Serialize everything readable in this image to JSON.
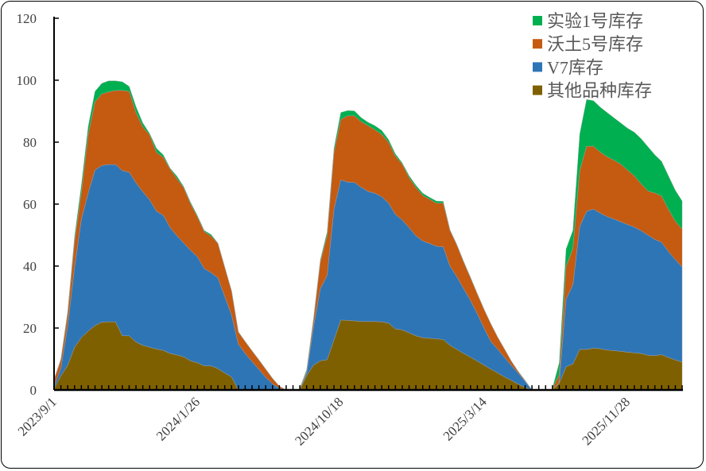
{
  "chart_data": {
    "type": "area",
    "stacked": true,
    "title": "",
    "xlabel": "",
    "ylabel": "",
    "ylim": [
      0,
      120
    ],
    "yticks": [
      0,
      20,
      40,
      60,
      80,
      100,
      120
    ],
    "grid": false,
    "legend_position": "top-right",
    "point_count": 93,
    "x_tick_labels": [
      {
        "index": 0,
        "label": "2023/9/1"
      },
      {
        "index": 21,
        "label": "2024/1/26"
      },
      {
        "index": 42,
        "label": "2024/10/18"
      },
      {
        "index": 63,
        "label": "2025/3/14"
      },
      {
        "index": 84,
        "label": "2025/11/28"
      }
    ],
    "series": [
      {
        "name": "其他品种库存",
        "color": "#7f6000",
        "values": [
          0.5,
          4.6,
          8,
          13.8,
          16.9,
          19,
          20.8,
          21.9,
          22,
          22,
          17.5,
          17.5,
          15.5,
          14.4,
          13.8,
          13.2,
          12.8,
          11.8,
          11.3,
          10.7,
          9.4,
          8.8,
          7.8,
          7.8,
          6.9,
          5.5,
          4.2,
          0,
          0,
          0,
          0,
          0,
          0,
          0,
          0,
          null,
          0.2,
          4.6,
          8,
          9.4,
          9.8,
          16.2,
          22.6,
          22.5,
          22.3,
          22.1,
          22.1,
          22.1,
          22,
          21.6,
          19.7,
          19.4,
          18.5,
          17.5,
          16.9,
          16.7,
          16.5,
          16.3,
          14.4,
          13.1,
          11.8,
          10.6,
          9.3,
          8,
          6.7,
          5.5,
          4.2,
          3.1,
          1.9,
          0.8,
          0,
          null,
          null,
          0,
          2.2,
          7.5,
          8.4,
          13.1,
          13.1,
          13.5,
          13.3,
          12.9,
          12.7,
          12.5,
          12.2,
          12,
          11.8,
          11.2,
          11.1,
          11.4,
          10.5,
          9.7,
          9
        ]
      },
      {
        "name": "V7库存",
        "color": "#2e75b6",
        "values": [
          0.7,
          2.4,
          12.8,
          25.8,
          38.1,
          44.6,
          50.2,
          50.6,
          50.8,
          50.8,
          53.3,
          52.8,
          51.4,
          49.6,
          47.6,
          44.5,
          43.6,
          40.6,
          38.5,
          36.7,
          35.7,
          34.2,
          31.4,
          30.1,
          29.3,
          24.7,
          20,
          14.8,
          11.8,
          9.2,
          6.7,
          4.1,
          2,
          0.5,
          0,
          null,
          0.2,
          0.8,
          12.3,
          23.3,
          27.2,
          42.2,
          45.3,
          44.6,
          44.7,
          43.3,
          42,
          41.4,
          40.4,
          38.7,
          37,
          35.5,
          33.9,
          32.3,
          31.2,
          30.6,
          29.9,
          29.9,
          25.6,
          23.5,
          20.9,
          18.3,
          15.3,
          11.9,
          8.9,
          7.6,
          6.3,
          4.8,
          3.5,
          2,
          0,
          null,
          null,
          0,
          0.3,
          21.8,
          25.6,
          39.7,
          44.6,
          44.9,
          43.8,
          43.1,
          42.5,
          41.8,
          41.2,
          40.6,
          39.6,
          38.8,
          37.5,
          36.3,
          34.2,
          32.4,
          30.7
        ]
      },
      {
        "name": "沃土5号库存",
        "color": "#c55a11",
        "values": [
          2.1,
          2.7,
          3.8,
          8.4,
          8.6,
          18.7,
          22,
          23.1,
          23.4,
          23.9,
          25.9,
          26.1,
          22.7,
          20.9,
          20.9,
          19,
          18.7,
          18.9,
          18.4,
          17.8,
          15,
          12.9,
          11.9,
          11.8,
          11.1,
          9.4,
          7.7,
          3.9,
          3.8,
          3.4,
          3,
          2.6,
          1.7,
          0.7,
          0,
          null,
          0.1,
          0.6,
          2.2,
          8.6,
          12.8,
          18.3,
          19.4,
          21.4,
          21.5,
          21.2,
          21.2,
          20.5,
          20.1,
          19.6,
          18.8,
          18,
          16.2,
          15.6,
          14.7,
          14.3,
          13.9,
          14.1,
          11.5,
          10.2,
          8.6,
          7.3,
          6.4,
          6,
          5.6,
          3.8,
          2.6,
          1.3,
          0.5,
          0.2,
          0,
          null,
          null,
          0.3,
          2.5,
          10.5,
          11.7,
          18,
          21,
          20.3,
          19.7,
          19.3,
          19,
          18.6,
          17.6,
          16.5,
          15.1,
          14.2,
          15,
          14.9,
          13.6,
          12.4,
          12.2
        ]
      },
      {
        "name": "实验1号库存",
        "color": "#00b050",
        "values": [
          0.2,
          0.3,
          0.9,
          1.5,
          2.4,
          2.7,
          3.4,
          3.4,
          3.6,
          3.1,
          2.8,
          1.6,
          1.9,
          1.3,
          0.5,
          1.3,
          0.8,
          0.3,
          0.8,
          0.4,
          0.5,
          0.4,
          0.4,
          0.5,
          0.1,
          0.1,
          0.1,
          0.1,
          0.1,
          0.1,
          0.1,
          0.1,
          0.1,
          0,
          0,
          null,
          0.1,
          0.5,
          0.5,
          0.7,
          1.2,
          1.3,
          2.3,
          1.7,
          1.6,
          1.3,
          1.1,
          1.3,
          1.3,
          0.9,
          0.7,
          0.4,
          0.6,
          0.7,
          0.7,
          0.6,
          0.7,
          0.6,
          0.2,
          0.2,
          0.2,
          0.2,
          0.1,
          0.1,
          0.1,
          0.1,
          0.1,
          0.1,
          0.1,
          0.1,
          0,
          null,
          null,
          0.2,
          3.8,
          5.7,
          5.8,
          11.9,
          15.1,
          14.7,
          14.5,
          14.3,
          13.7,
          13.3,
          13.5,
          14.1,
          14.6,
          14.3,
          12.3,
          11.2,
          10.8,
          10,
          9.1
        ]
      }
    ],
    "legend": [
      "实验1号库存",
      "沃土5号库存",
      "V7库存",
      "其他品种库存"
    ]
  }
}
